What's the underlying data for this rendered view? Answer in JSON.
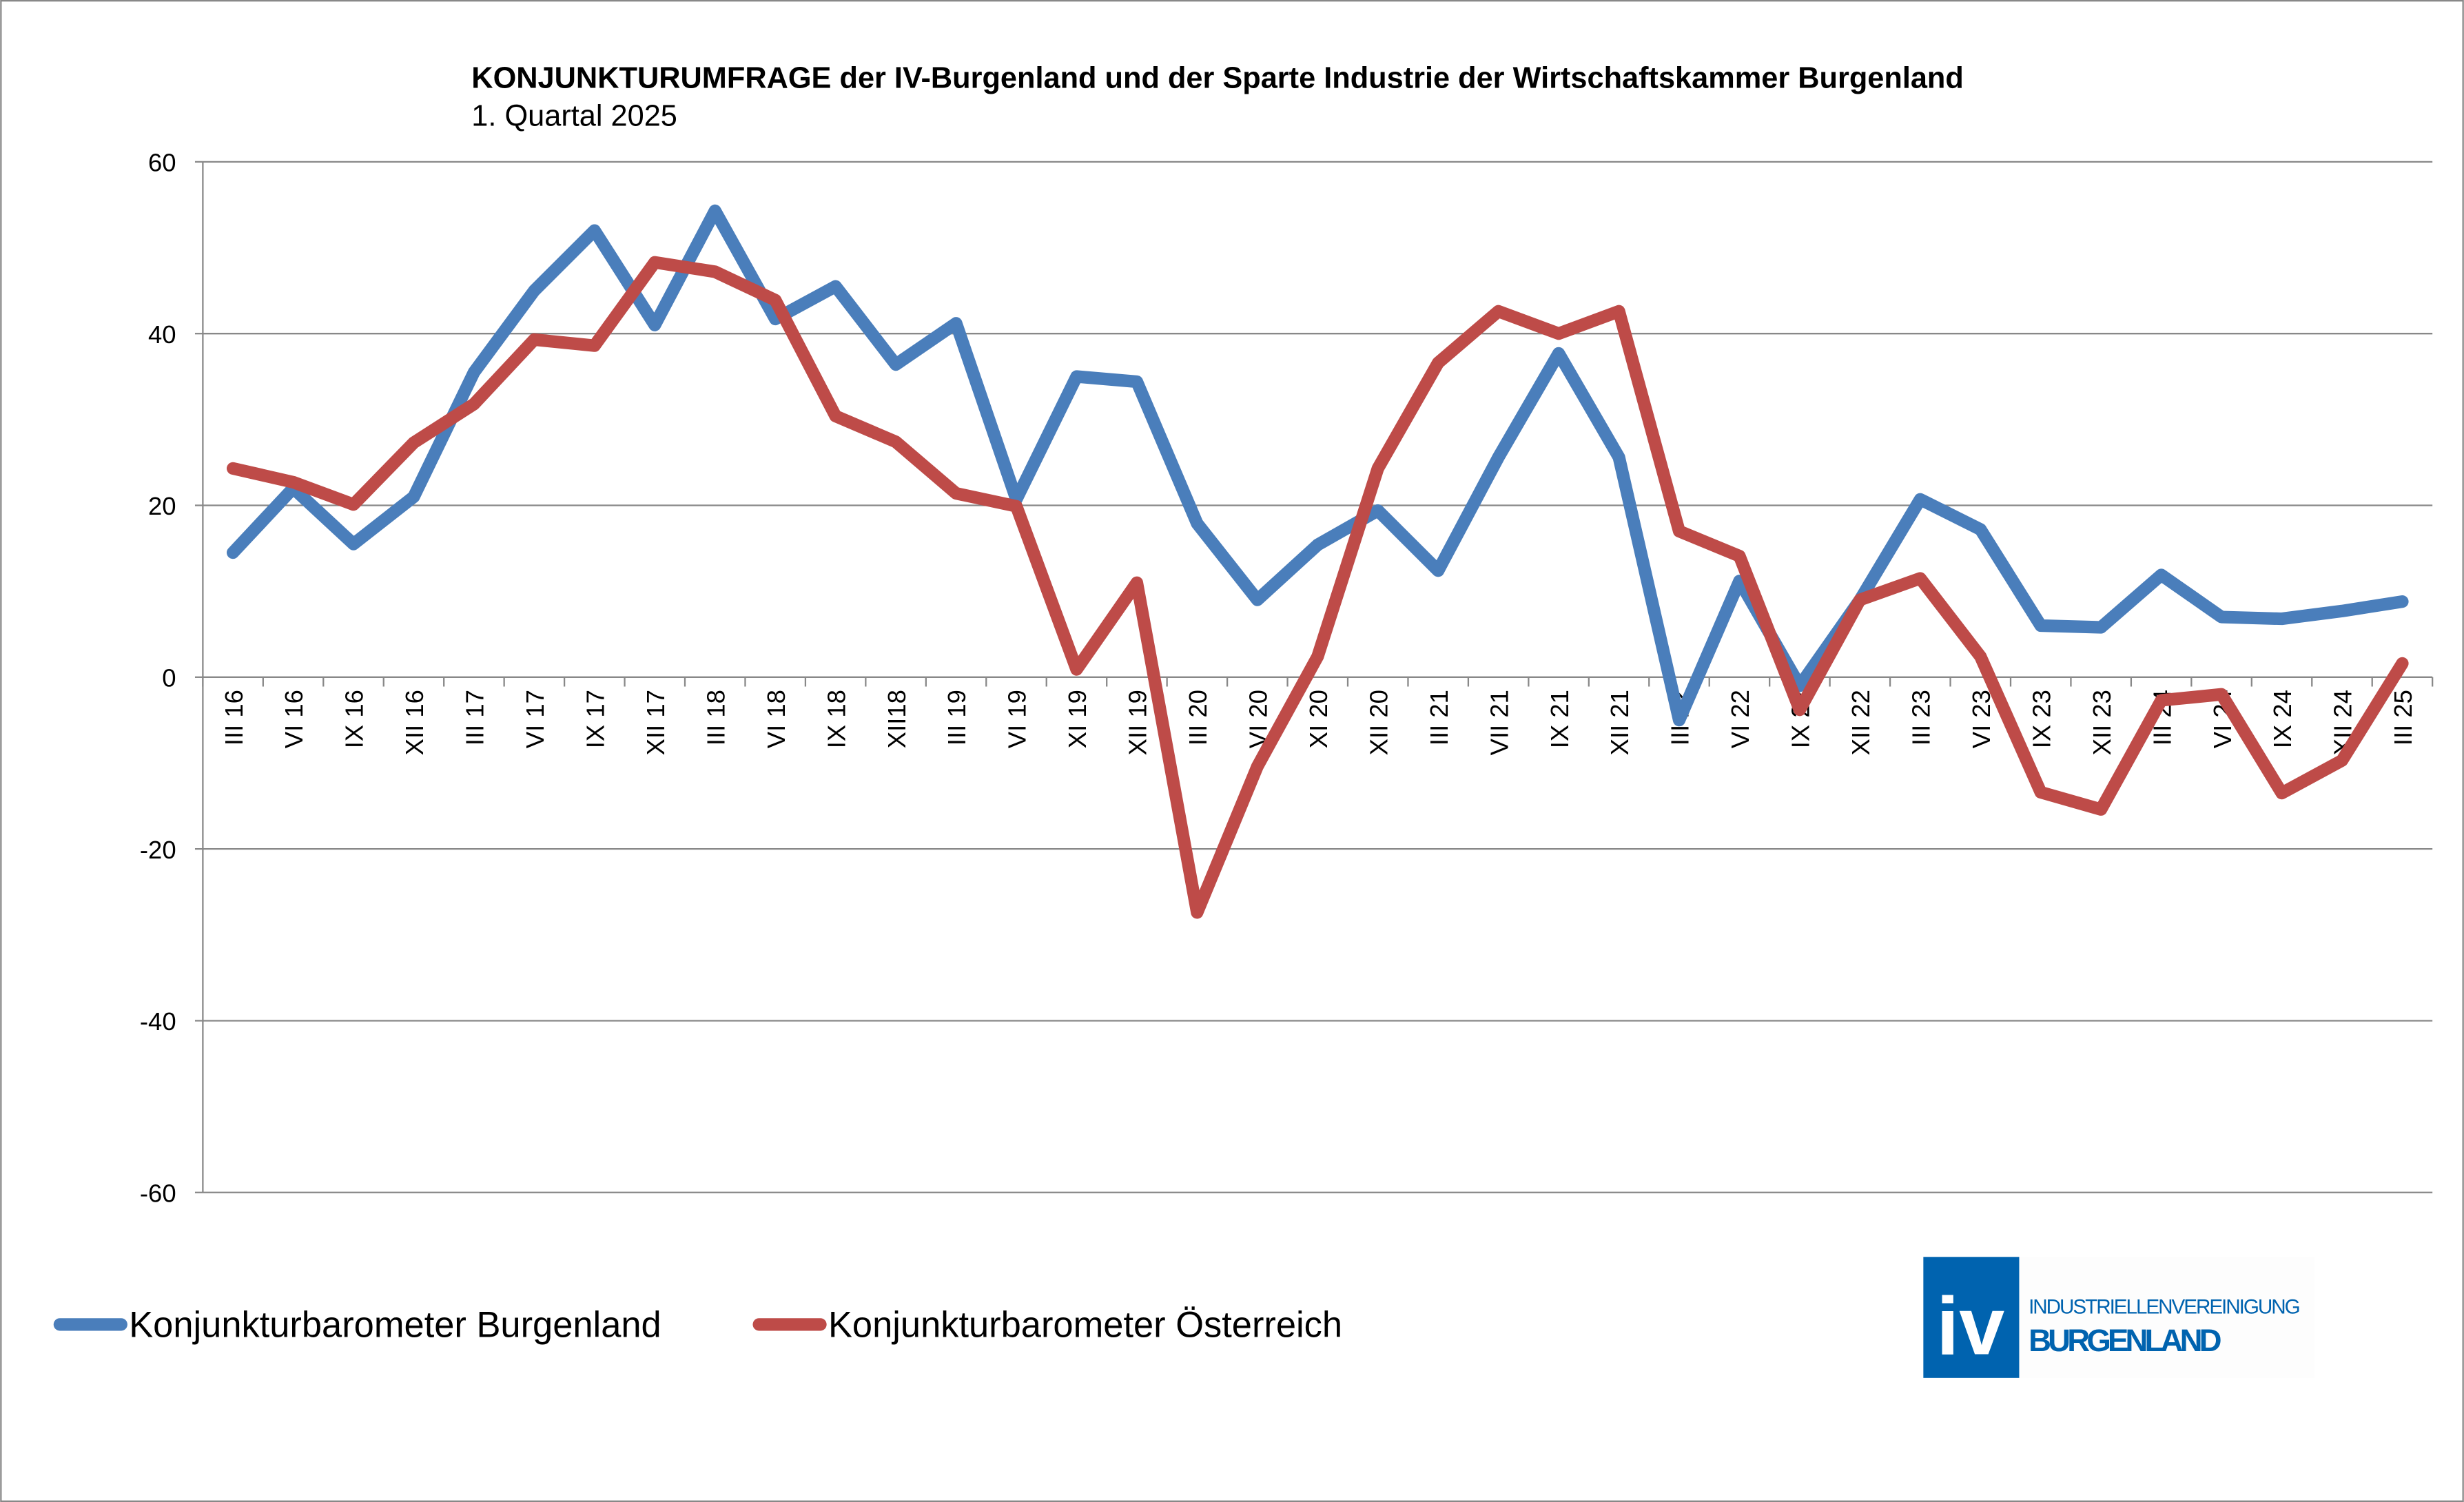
{
  "chart_data": {
    "type": "line",
    "title": "KONJUNKTURUMFRAGE der IV-Burgenland und der Sparte Industrie der Wirtschaftskammer Burgenland",
    "subtitle": "1. Quartal 2025",
    "xlabel": "",
    "ylabel": "",
    "ylim": [
      -60,
      60
    ],
    "yticks": [
      "60",
      "40",
      "20",
      "0",
      "-20",
      "-40",
      "-60"
    ],
    "grid": true,
    "legend_position": "bottom-left",
    "categories": [
      "III 16",
      "VI 16",
      "IX 16",
      "XII 16",
      "III 17",
      "VI 17",
      "IX 17",
      "XII 17",
      "III 18",
      "VI 18",
      "IX 18",
      "XII18",
      "III 19",
      "VI 19",
      "XI 19",
      "XII 19",
      "III 20",
      "VI 20",
      "XI 20",
      "XII 20",
      "III 21",
      "VII 21",
      "IX 21",
      "XII 21",
      "III 22",
      "VI 22",
      "IX 22",
      "XII 22",
      "III 23",
      "VI 23",
      "IX 23",
      "XII 23",
      "III 24",
      "VI 24",
      "IX 24",
      "XII 24",
      "III 25"
    ],
    "series": [
      {
        "name": "Konjunkturbarometer Burgenland",
        "color": "#4a7ebb",
        "values": [
          14.5,
          22,
          15.5,
          21,
          35.5,
          45,
          52,
          41,
          54.3,
          41.7,
          45.5,
          36.4,
          41.2,
          20.7,
          35,
          34.4,
          17.9,
          9,
          15.4,
          19.4,
          12.4,
          25.6,
          37.7,
          25.6,
          -5,
          11.2,
          -1,
          9,
          20.7,
          17.2,
          6,
          5.8,
          11.9,
          7,
          6.8,
          7.7,
          8.8
        ]
      },
      {
        "name": "Konjunkturbarometer Österreich",
        "color": "#be4b48",
        "values": [
          24.3,
          22.7,
          20.1,
          27.3,
          31.8,
          39.3,
          38.6,
          48.3,
          47.2,
          43.9,
          30.4,
          27.4,
          21.4,
          19.9,
          0.9,
          11,
          -27.4,
          -10.4,
          2.4,
          24.3,
          36.6,
          42.6,
          40,
          42.6,
          17,
          14.1,
          -3.8,
          9,
          11.5,
          2.4,
          -13.4,
          -15.4,
          -2.7,
          -2,
          -13.5,
          -9.7,
          1.6
        ]
      }
    ]
  },
  "logo": {
    "mark": "iv",
    "line1": "INDUSTRIELLENVEREINIGUNG",
    "line2": "BURGENLAND",
    "color": "#0063af"
  }
}
